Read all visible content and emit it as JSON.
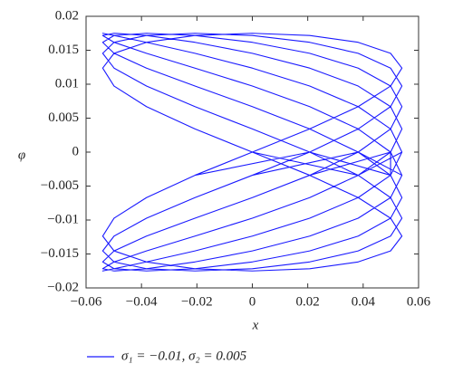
{
  "chart_data": {
    "type": "line",
    "x_label": "x",
    "y_label": "φ",
    "xlim": [
      -0.06,
      0.06
    ],
    "xticks": [
      {
        "value": -0.06,
        "label": "−0.06"
      },
      {
        "value": -0.04,
        "label": "−0.04"
      },
      {
        "value": -0.02,
        "label": "−0.02"
      },
      0,
      0.02,
      0.04,
      0.06
    ],
    "ylim": [
      -0.02,
      0.02
    ],
    "yticks": [
      {
        "value": -0.02,
        "label": "−0.02"
      },
      {
        "value": -0.015,
        "label": "−0.015"
      },
      {
        "value": -0.01,
        "label": "−0.01"
      },
      {
        "value": -0.005,
        "label": "−0.005"
      },
      0,
      0.005,
      0.01,
      0.015,
      0.02
    ],
    "grid": false,
    "legend": "bottom",
    "x": [
      0,
      0.0207,
      0.0382,
      0.0499,
      0.054,
      0.0499,
      0.0382,
      0.0207,
      0,
      -0.0207,
      -0.0382,
      -0.0499,
      -0.054,
      -0.0499,
      -0.0382,
      -0.0207,
      0,
      0.0207,
      0.0382,
      0.0499,
      0.054,
      0.0499,
      0.0382,
      0.0207,
      0,
      -0.0207,
      -0.0382,
      -0.0499,
      -0.054,
      -0.0499,
      -0.0382,
      -0.0207,
      0.0207,
      0.0382,
      0.0499,
      0.054,
      0.0499,
      0.0382,
      0.0207,
      0,
      -0.0207,
      -0.0382,
      -0.0499,
      -0.054,
      -0.0499,
      -0.0382,
      -0.0207,
      0,
      0.0207,
      0.0382,
      0.0499,
      0.054,
      0.0499,
      0.0382,
      0.0207,
      0,
      -0.0207,
      -0.0382,
      -0.0499,
      -0.054,
      -0.0499,
      -0.0382,
      -0.0207,
      0,
      0.0382,
      0.0499,
      0.054,
      0.0499,
      0.0382,
      0.0207,
      0,
      -0.0207,
      -0.0382,
      -0.0499,
      -0.054,
      -0.0499,
      -0.0382,
      -0.0207,
      0,
      0.0207,
      0.0382,
      0.0499,
      0.054,
      0.0499,
      0.0382,
      0.0207,
      0,
      -0.0207,
      -0.0382,
      -0.0499,
      -0.054,
      -0.0499,
      -0.0382,
      -0.0207,
      0,
      0.0207,
      0.0499,
      0.054,
      0.0499,
      0.0382,
      0.0207,
      0,
      -0.0207,
      -0.0382,
      -0.0499,
      -0.054,
      -0.0499,
      -0.0382,
      -0.0207,
      0,
      0.0207,
      0.0382,
      0.0499,
      0.054,
      0.0499,
      0.0382,
      0.0207,
      0,
      -0.0207,
      -0.0382,
      -0.0499,
      -0.054,
      -0.0499,
      -0.0382,
      -0.0207,
      0,
      0.0207,
      0.0382,
      0.054,
      0.0499,
      0.0382,
      0.0207,
      0,
      -0.0207,
      -0.0382,
      -0.0499,
      -0.054,
      -0.0499,
      -0.0382,
      -0.0207,
      0,
      0.0207,
      0.0382,
      0.0499,
      0.054,
      0.0499,
      0.0382,
      0.0207,
      0,
      -0.0207,
      -0.0382,
      -0.0499,
      -0.054,
      -0.0499,
      -0.0382,
      -0.0207,
      0,
      0.0207,
      0.0382,
      0.0499,
      0.0499,
      0.0382,
      0.0207,
      0,
      -0.0207,
      -0.0382,
      -0.0499,
      -0.054,
      -0.0499,
      -0.0382,
      -0.0207,
      0,
      0.0207,
      0.0382,
      0.0499,
      0.054,
      0.0499,
      0.0382,
      0.0207,
      0,
      -0.0207,
      -0.0382,
      -0.0499,
      -0.054,
      -0.0499,
      -0.0382,
      -0.0207,
      0,
      0.0207,
      0.0382,
      0.0499,
      0.054,
      0.0382,
      0.0207,
      0,
      -0.0207,
      -0.0382,
      -0.0499,
      -0.054,
      -0.0499,
      -0.0382,
      -0.0207,
      0,
      0.0207,
      0.0382,
      0.0499,
      0.054,
      0.0499,
      0.0382,
      0.0207,
      0,
      -0.0207,
      -0.0382,
      -0.0499,
      -0.054,
      -0.0499,
      -0.0382,
      -0.0207,
      0,
      0.0207,
      0.0382,
      0.0499,
      0.054,
      0.0499,
      0.0207,
      0,
      -0.0207,
      -0.0382,
      -0.0499,
      -0.054,
      -0.0499,
      -0.0382,
      -0.0207,
      0,
      0.0207,
      0.0382,
      0.0499,
      0.054,
      0.0499,
      0.0382,
      0.0207,
      0,
      -0.0207,
      -0.0382,
      -0.0499,
      -0.054,
      -0.0499,
      -0.0382,
      -0.0207,
      0,
      0.0207,
      0.0382,
      0.0499,
      0.054,
      0.0499,
      0.0382,
      0,
      -0.0207,
      -0.0382,
      -0.0499,
      -0.054,
      -0.0499,
      -0.0382,
      -0.0207,
      0,
      0.0207,
      0.0382,
      0.0499,
      0.054,
      0.0499,
      0.0382,
      0.0207,
      0,
      -0.0207,
      -0.0382,
      -0.0499,
      -0.054,
      -0.0499,
      -0.0382,
      -0.0207,
      0,
      0.0207,
      0.0382,
      0.0499,
      0.054,
      0.0499,
      0.0382,
      0.0207
    ],
    "series": [
      {
        "name": "σ₁ = −0.01, σ₂ = 0.005",
        "color": "#1a1aff",
        "values": [
          0,
          0.00341,
          0.0067,
          0.00973,
          0.01237,
          0.01455,
          0.01617,
          0.01717,
          0.0175,
          0.01717,
          0.01617,
          0.01455,
          0.01237,
          0.00973,
          0.0067,
          0.00341,
          0,
          -0.00341,
          -0.0067,
          -0.00973,
          -0.01237,
          -0.01455,
          -0.01617,
          -0.01717,
          -0.0175,
          -0.01717,
          -0.01617,
          -0.01455,
          -0.01237,
          -0.00973,
          -0.0067,
          -0.00341,
          0,
          0.00341,
          0.0067,
          0.00973,
          0.01237,
          0.01455,
          0.01617,
          0.01717,
          0.0175,
          0.01717,
          0.01617,
          0.01455,
          0.01237,
          0.00973,
          0.0067,
          0.00341,
          0,
          -0.00341,
          -0.0067,
          -0.00973,
          -0.01237,
          -0.01455,
          -0.01617,
          -0.01717,
          -0.0175,
          -0.01717,
          -0.01617,
          -0.01455,
          -0.01237,
          -0.00973,
          -0.0067,
          -0.00341,
          0,
          0.00341,
          0.0067,
          0.00973,
          0.01237,
          0.01455,
          0.01617,
          0.01717,
          0.0175,
          0.01717,
          0.01617,
          0.01455,
          0.01237,
          0.00973,
          0.0067,
          0.00341,
          0,
          -0.00341,
          -0.0067,
          -0.00973,
          -0.01237,
          -0.01455,
          -0.01617,
          -0.01717,
          -0.0175,
          -0.01717,
          -0.01617,
          -0.01455,
          -0.01237,
          -0.00973,
          -0.0067,
          -0.00341,
          0,
          0.00341,
          0.0067,
          0.00973,
          0.01237,
          0.01455,
          0.01617,
          0.01717,
          0.0175,
          0.01717,
          0.01617,
          0.01455,
          0.01237,
          0.00973,
          0.0067,
          0.00341,
          0,
          -0.00341,
          -0.0067,
          -0.00973,
          -0.01237,
          -0.01455,
          -0.01617,
          -0.01717,
          -0.0175,
          -0.01717,
          -0.01617,
          -0.01455,
          -0.01237,
          -0.00973,
          -0.0067,
          -0.00341,
          0,
          0.00341,
          0.0067,
          0.00973,
          0.01237,
          0.01455,
          0.01617,
          0.01717,
          0.0175,
          0.01717,
          0.01617,
          0.01455,
          0.01237,
          0.00973,
          0.0067,
          0.00341,
          0,
          -0.00341,
          -0.0067,
          -0.00973,
          -0.01237,
          -0.01455,
          -0.01617,
          -0.01717,
          -0.0175,
          -0.01717,
          -0.01617,
          -0.01455,
          -0.01237,
          -0.00973,
          -0.0067,
          -0.00341,
          0,
          0.00341,
          0.0067,
          0.00973,
          0.01237,
          0.01455,
          0.01617,
          0.01717,
          0.0175,
          0.01717,
          0.01617,
          0.01455,
          0.01237,
          0.00973,
          0.0067,
          0.00341,
          0,
          -0.00341,
          -0.0067,
          -0.00973,
          -0.01237,
          -0.01455,
          -0.01617,
          -0.01717,
          -0.0175,
          -0.01717,
          -0.01617,
          -0.01455,
          -0.01237,
          -0.00973,
          -0.0067,
          -0.00341,
          0,
          0.00341,
          0.0067,
          0.00973,
          0.01237,
          0.01455,
          0.01617,
          0.01717,
          0.0175,
          0.01717,
          0.01617,
          0.01455,
          0.01237,
          0.00973,
          0.0067,
          0.00341,
          0,
          -0.00341,
          -0.0067,
          -0.00973,
          -0.01237,
          -0.01455,
          -0.01617,
          -0.01717,
          -0.0175,
          -0.01717,
          -0.01617,
          -0.01455,
          -0.01237,
          -0.00973,
          -0.0067,
          -0.00341,
          0,
          0.00341,
          0.0067,
          0.00973,
          0.01237,
          0.01455,
          0.01617,
          0.01717,
          0.0175,
          0.01717,
          0.01617,
          0.01455,
          0.01237,
          0.00973,
          0.0067,
          0.00341,
          0,
          -0.00341,
          -0.0067,
          -0.00973,
          -0.01237,
          -0.01455,
          -0.01617,
          -0.01717,
          -0.0175,
          -0.01717,
          -0.01617,
          -0.01455,
          -0.01237,
          -0.00973,
          -0.0067,
          -0.00341,
          0,
          0.00341,
          0.0067,
          0.00973,
          0.01237,
          0.01455,
          0.01617,
          0.01717,
          0.0175,
          0.01717,
          0.01617,
          0.01455,
          0.01237,
          0.00973,
          0.0067,
          0.00341,
          0,
          -0.00341,
          -0.0067,
          -0.00973,
          -0.01237,
          -0.01455,
          -0.01617,
          -0.01717,
          -0.0175,
          -0.01717,
          -0.01617,
          -0.01455,
          -0.01237,
          -0.00973,
          -0.0067,
          -0.00341
        ]
      }
    ]
  }
}
